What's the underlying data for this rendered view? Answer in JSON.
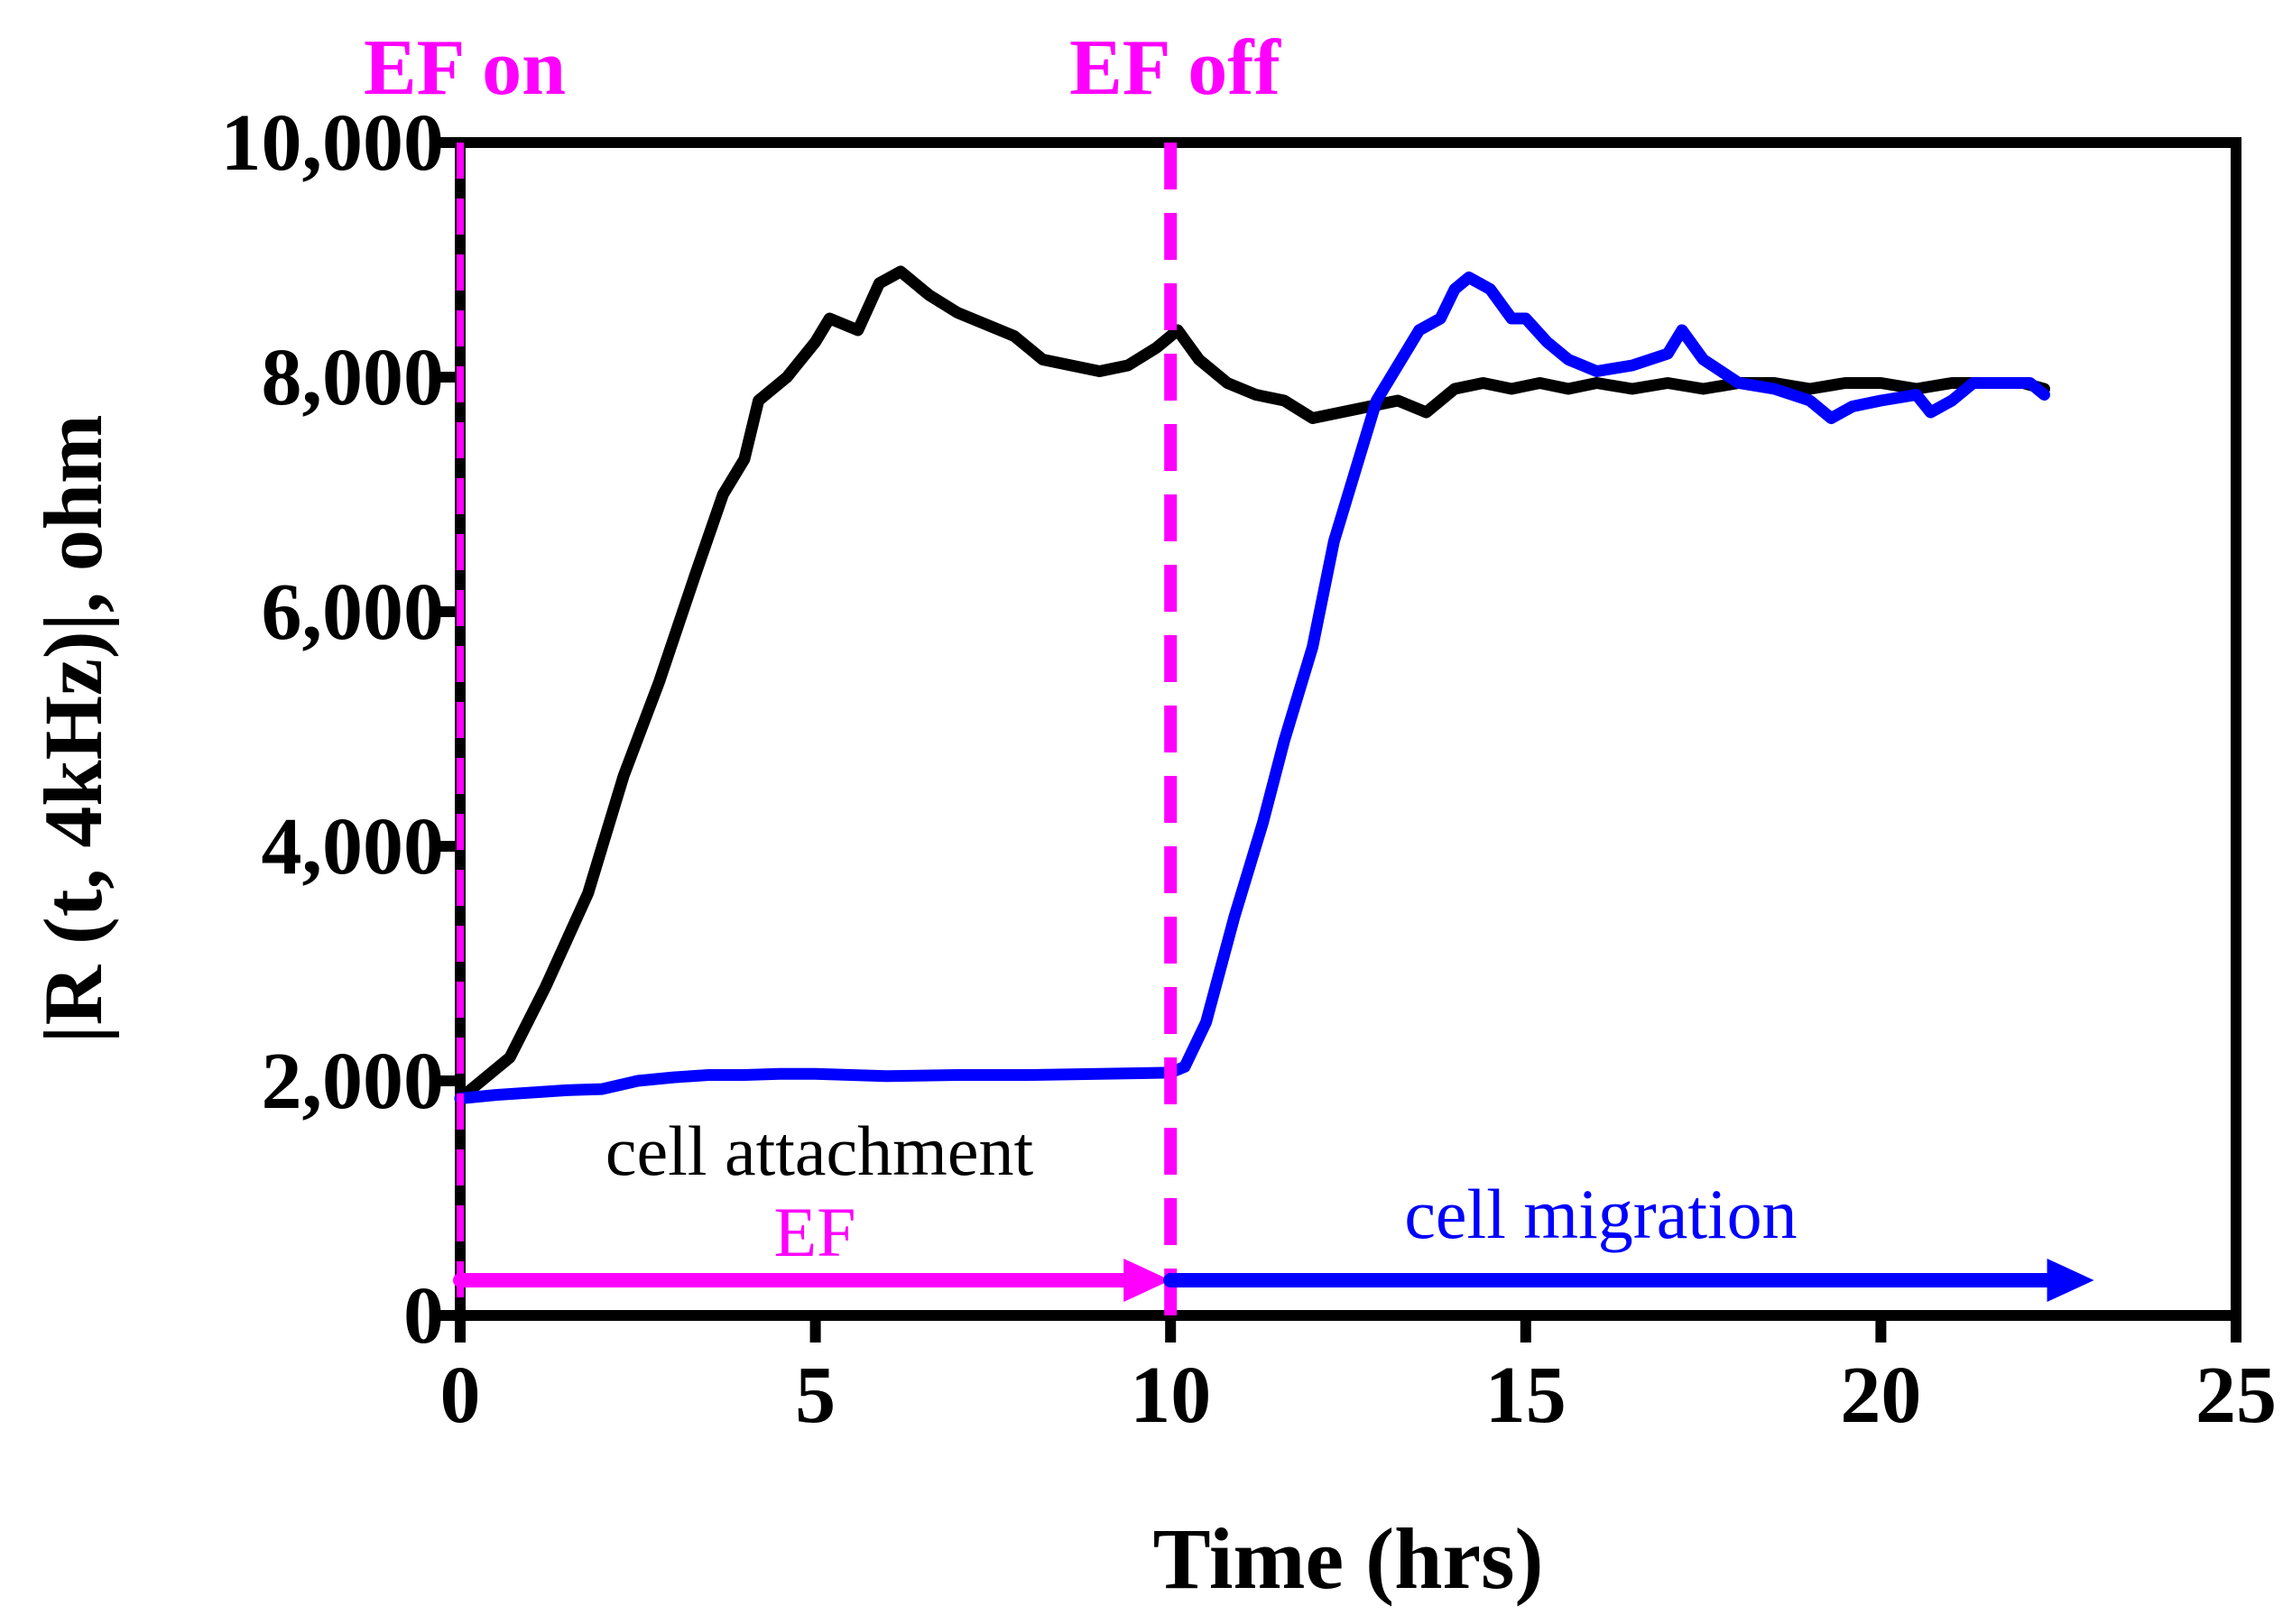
{
  "chart_data": {
    "type": "line",
    "title": "",
    "xlabel": "Time (hrs)",
    "ylabel": "|R (t, 4kHz)|, ohm",
    "xlim": [
      0,
      25
    ],
    "ylim": [
      0,
      10000
    ],
    "x_ticks": [
      0,
      5,
      10,
      15,
      20,
      25
    ],
    "x_tick_labels": [
      "0",
      "5",
      "10",
      "15",
      "20",
      "25"
    ],
    "y_ticks": [
      0,
      2000,
      4000,
      6000,
      8000,
      10000
    ],
    "y_tick_labels": [
      "0",
      "2,000",
      "4,000",
      "6,000",
      "8,000",
      "10,000"
    ],
    "grid": false,
    "colors": {
      "black_series": "#000000",
      "blue_series": "#0000ff",
      "ef": "#ff00ff"
    },
    "series": [
      {
        "name": "cell attachment",
        "color": "#000000",
        "points": [
          [
            0,
            1850
          ],
          [
            0.3,
            2000
          ],
          [
            0.7,
            2200
          ],
          [
            1.2,
            2800
          ],
          [
            1.8,
            3600
          ],
          [
            2.3,
            4600
          ],
          [
            2.8,
            5400
          ],
          [
            3.3,
            6300
          ],
          [
            3.7,
            7000
          ],
          [
            4.0,
            7300
          ],
          [
            4.2,
            7800
          ],
          [
            4.6,
            8000
          ],
          [
            5.0,
            8300
          ],
          [
            5.2,
            8500
          ],
          [
            5.6,
            8400
          ],
          [
            5.9,
            8800
          ],
          [
            6.2,
            8900
          ],
          [
            6.6,
            8700
          ],
          [
            7.0,
            8550
          ],
          [
            7.4,
            8450
          ],
          [
            7.8,
            8350
          ],
          [
            8.2,
            8150
          ],
          [
            8.6,
            8100
          ],
          [
            9.0,
            8050
          ],
          [
            9.4,
            8100
          ],
          [
            9.8,
            8250
          ],
          [
            10.1,
            8400
          ],
          [
            10.4,
            8150
          ],
          [
            10.8,
            7950
          ],
          [
            11.2,
            7850
          ],
          [
            11.6,
            7800
          ],
          [
            12.0,
            7650
          ],
          [
            12.4,
            7700
          ],
          [
            12.8,
            7750
          ],
          [
            13.2,
            7800
          ],
          [
            13.6,
            7700
          ],
          [
            14.0,
            7900
          ],
          [
            14.4,
            7950
          ],
          [
            14.8,
            7900
          ],
          [
            15.2,
            7950
          ],
          [
            15.6,
            7900
          ],
          [
            16.0,
            7950
          ],
          [
            16.5,
            7900
          ],
          [
            17.0,
            7950
          ],
          [
            17.5,
            7900
          ],
          [
            18.0,
            7950
          ],
          [
            18.5,
            7950
          ],
          [
            19.0,
            7900
          ],
          [
            19.5,
            7950
          ],
          [
            20.0,
            7950
          ],
          [
            20.5,
            7900
          ],
          [
            21.0,
            7950
          ],
          [
            21.5,
            7950
          ],
          [
            22.0,
            7950
          ],
          [
            22.3,
            7900
          ]
        ]
      },
      {
        "name": "cell migration",
        "color": "#0000ff",
        "points": [
          [
            0,
            1850
          ],
          [
            0.5,
            1880
          ],
          [
            1.0,
            1900
          ],
          [
            1.5,
            1920
          ],
          [
            2.0,
            1930
          ],
          [
            2.5,
            2000
          ],
          [
            3.0,
            2030
          ],
          [
            3.5,
            2050
          ],
          [
            4.0,
            2050
          ],
          [
            4.5,
            2060
          ],
          [
            5.0,
            2060
          ],
          [
            6.0,
            2040
          ],
          [
            7.0,
            2050
          ],
          [
            8.0,
            2050
          ],
          [
            9.0,
            2060
          ],
          [
            10.0,
            2070
          ],
          [
            10.2,
            2120
          ],
          [
            10.5,
            2500
          ],
          [
            10.9,
            3400
          ],
          [
            11.3,
            4200
          ],
          [
            11.6,
            4900
          ],
          [
            12.0,
            5700
          ],
          [
            12.3,
            6600
          ],
          [
            12.6,
            7200
          ],
          [
            12.9,
            7800
          ],
          [
            13.2,
            8100
          ],
          [
            13.5,
            8400
          ],
          [
            13.8,
            8500
          ],
          [
            14.0,
            8750
          ],
          [
            14.2,
            8850
          ],
          [
            14.5,
            8750
          ],
          [
            14.8,
            8500
          ],
          [
            15.0,
            8500
          ],
          [
            15.3,
            8300
          ],
          [
            15.6,
            8150
          ],
          [
            16.0,
            8050
          ],
          [
            16.5,
            8100
          ],
          [
            17.0,
            8200
          ],
          [
            17.2,
            8400
          ],
          [
            17.5,
            8150
          ],
          [
            18.0,
            7950
          ],
          [
            18.5,
            7900
          ],
          [
            19.0,
            7800
          ],
          [
            19.3,
            7650
          ],
          [
            19.6,
            7750
          ],
          [
            20.0,
            7800
          ],
          [
            20.5,
            7850
          ],
          [
            20.7,
            7700
          ],
          [
            21.0,
            7800
          ],
          [
            21.3,
            7950
          ],
          [
            21.8,
            7950
          ],
          [
            22.1,
            7950
          ],
          [
            22.3,
            7850
          ]
        ]
      }
    ],
    "vertical_markers": [
      {
        "x": 0,
        "label": "EF on"
      },
      {
        "x": 10,
        "label": "EF off"
      }
    ],
    "annotations": {
      "cell_attachment": "cell attachment",
      "ef": "EF",
      "cell_migration": "cell migration"
    },
    "arrows": [
      {
        "name": "ef-arrow",
        "from": 0,
        "to": 10,
        "y": 300,
        "color": "#ff00ff"
      },
      {
        "name": "migration-arrow",
        "from": 10,
        "to": 23,
        "y": 300,
        "color": "#0000ff"
      }
    ]
  }
}
